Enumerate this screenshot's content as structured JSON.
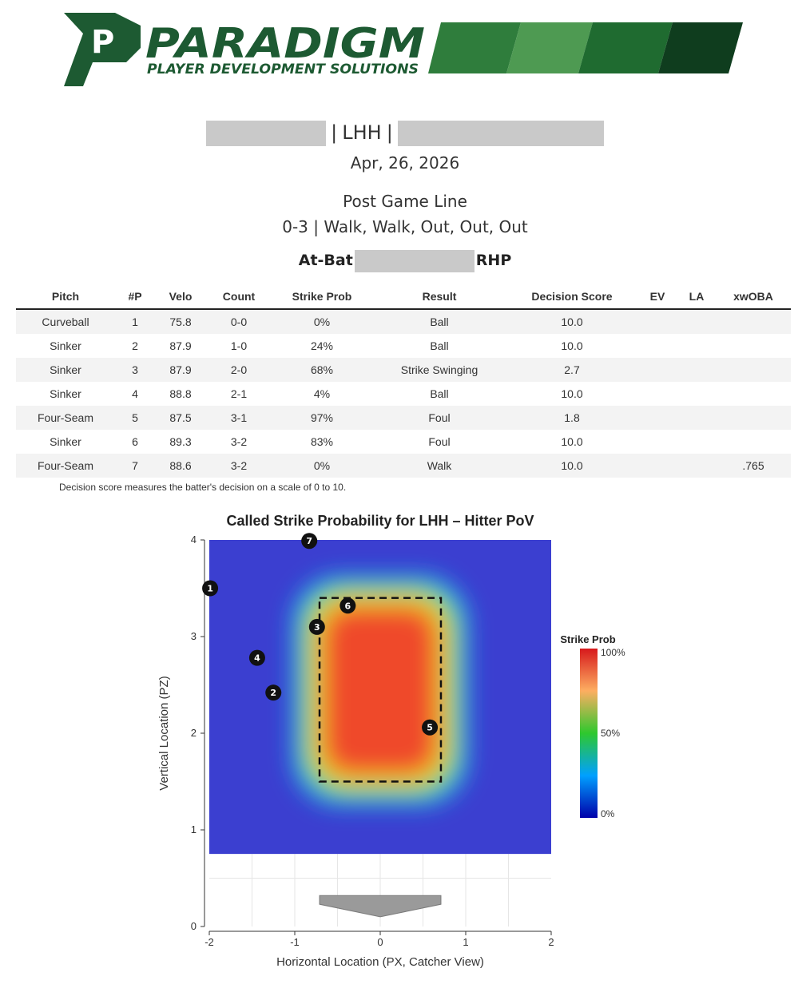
{
  "header": {
    "brand_name": "PARADIGM",
    "brand_tagline": "PLAYER DEVELOPMENT SOLUTIONS",
    "brand_mark": "P",
    "colors": {
      "dark_green": "#1d5a32",
      "mid_green": "#2f7d3c",
      "light_green": "#4e9a52",
      "darkest_green": "#0f3d1e"
    }
  },
  "report": {
    "batter_side": "LHH",
    "date": "Apr, 26, 2026",
    "line_title": "Post Game Line",
    "line_summary": "0-3 | Walk, Walk, Out, Out, Out",
    "atbat_label": "At-Bat",
    "pitcher_hand": "RHP"
  },
  "table": {
    "headers": [
      "Pitch",
      "#P",
      "Velo",
      "Count",
      "Strike Prob",
      "Result",
      "Decision Score",
      "EV",
      "LA",
      "xwOBA"
    ],
    "rows": [
      [
        "Curveball",
        "1",
        "75.8",
        "0-0",
        "0%",
        "Ball",
        "10.0",
        "",
        "",
        ""
      ],
      [
        "Sinker",
        "2",
        "87.9",
        "1-0",
        "24%",
        "Ball",
        "10.0",
        "",
        "",
        ""
      ],
      [
        "Sinker",
        "3",
        "87.9",
        "2-0",
        "68%",
        "Strike Swinging",
        "2.7",
        "",
        "",
        ""
      ],
      [
        "Sinker",
        "4",
        "88.8",
        "2-1",
        "4%",
        "Ball",
        "10.0",
        "",
        "",
        ""
      ],
      [
        "Four-Seam",
        "5",
        "87.5",
        "3-1",
        "97%",
        "Foul",
        "1.8",
        "",
        "",
        ""
      ],
      [
        "Sinker",
        "6",
        "89.3",
        "3-2",
        "83%",
        "Foul",
        "10.0",
        "",
        "",
        ""
      ],
      [
        "Four-Seam",
        "7",
        "88.6",
        "3-2",
        "0%",
        "Walk",
        "10.0",
        "",
        "",
        ".765"
      ]
    ],
    "note": "Decision score measures the batter's decision on a scale of 0 to 10."
  },
  "chart_data": {
    "type": "heatmap",
    "title": "Called Strike Probability for LHH – Hitter PoV",
    "xlabel": "Horizontal Location (PX, Catcher View)",
    "ylabel": "Vertical Location (PZ)",
    "xlim": [
      -2,
      2
    ],
    "ylim": [
      0,
      4
    ],
    "x_ticks": [
      "-2",
      "-1",
      "0",
      "1",
      "2"
    ],
    "y_ticks": [
      "0",
      "1",
      "2",
      "3",
      "4"
    ],
    "heatmap_y_range": [
      0.75,
      4
    ],
    "strike_zone": {
      "x": [
        -0.71,
        0.71
      ],
      "z": [
        1.5,
        3.4
      ]
    },
    "colorbar": {
      "title": "Strike Prob",
      "ticks": [
        "100%",
        "50%",
        "0%"
      ]
    },
    "pitches": [
      {
        "label": "1",
        "x": -1.99,
        "z": 3.5
      },
      {
        "label": "2",
        "x": -1.25,
        "z": 2.42
      },
      {
        "label": "3",
        "x": -0.74,
        "z": 3.1
      },
      {
        "label": "4",
        "x": -1.44,
        "z": 2.78
      },
      {
        "label": "5",
        "x": 0.58,
        "z": 2.06
      },
      {
        "label": "6",
        "x": -0.38,
        "z": 3.32
      },
      {
        "label": "7",
        "x": -0.83,
        "z": 3.99
      }
    ]
  }
}
